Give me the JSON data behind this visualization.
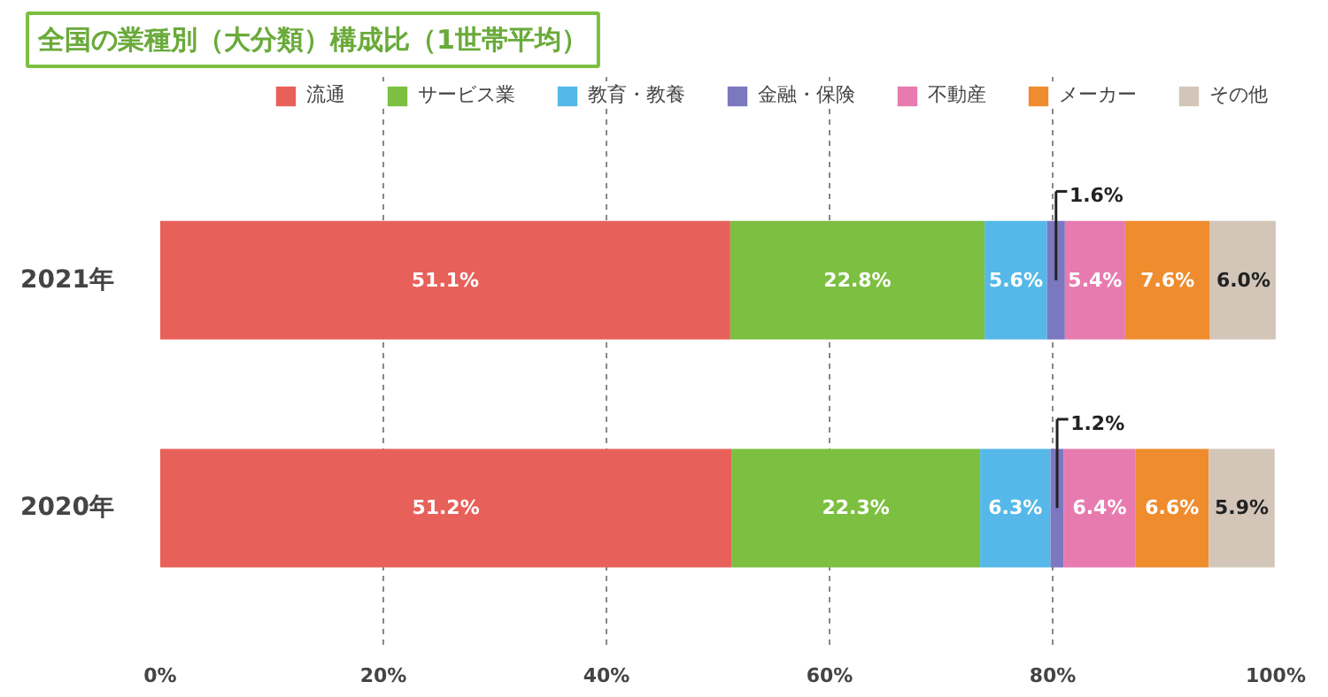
{
  "chart_data": {
    "type": "bar",
    "orientation": "horizontal",
    "stacked": true,
    "title": "全国の業種別（大分類）構成比（1世帯平均）",
    "categories": [
      "2021年",
      "2020年"
    ],
    "series": [
      {
        "name": "流通",
        "color": "#e8605a",
        "values": [
          51.1,
          51.2
        ],
        "value_labels": [
          "51.1%",
          "51.2%"
        ]
      },
      {
        "name": "サービス業",
        "color": "#7cbf41",
        "values": [
          22.8,
          22.3
        ],
        "value_labels": [
          "22.8%",
          "22.3%"
        ]
      },
      {
        "name": "教育・教養",
        "color": "#55b8e8",
        "values": [
          5.6,
          6.3
        ],
        "value_labels": [
          "5.6%",
          "6.3%"
        ]
      },
      {
        "name": "金融・保険",
        "color": "#7b78c0",
        "values": [
          1.6,
          1.2
        ],
        "value_labels": [
          "1.6%",
          "1.2%"
        ]
      },
      {
        "name": "不動産",
        "color": "#e77bb0",
        "values": [
          5.4,
          6.4
        ],
        "value_labels": [
          "5.4%",
          "6.4%"
        ]
      },
      {
        "name": "メーカー",
        "color": "#ef8c2e",
        "values": [
          7.6,
          6.6
        ],
        "value_labels": [
          "7.6%",
          "6.6%"
        ]
      },
      {
        "name": "その他",
        "color": "#d3c6b9",
        "values": [
          6.0,
          5.9
        ],
        "value_labels": [
          "6.0%",
          "5.9%"
        ]
      }
    ],
    "xlim": [
      0,
      100
    ],
    "xticks": [
      {
        "value": 0,
        "label": "0%"
      },
      {
        "value": 20,
        "label": "20%"
      },
      {
        "value": 40,
        "label": "40%"
      },
      {
        "value": 60,
        "label": "60%"
      },
      {
        "value": 80,
        "label": "80%"
      },
      {
        "value": 100,
        "label": "100%"
      }
    ],
    "grid": "x",
    "legend": "top right"
  }
}
